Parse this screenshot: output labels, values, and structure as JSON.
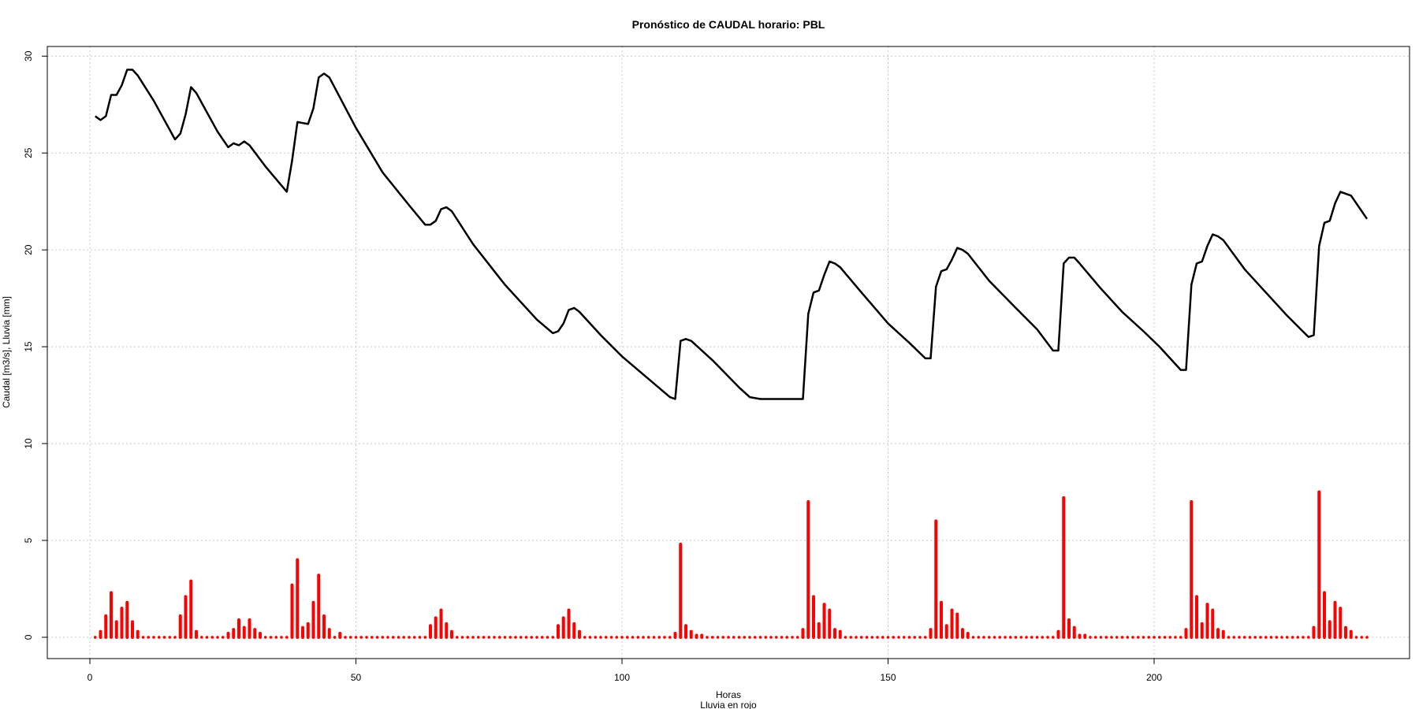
{
  "chart_data": {
    "type": "line",
    "title": "Pronóstico de CAUDAL horario: PBL",
    "xlabel": "Horas",
    "xlabel2": "Lluvia en rojo",
    "ylabel": "Caudal [m3/s], Lluvia [mm]",
    "xlim": [
      -8,
      248
    ],
    "ylim": [
      -1.1,
      30.5
    ],
    "xticks": [
      0,
      50,
      100,
      150,
      200
    ],
    "yticks": [
      0,
      5,
      10,
      15,
      20,
      25,
      30
    ],
    "grid": true,
    "colors": {
      "caudal": "#000000",
      "lluvia": "#ff0000",
      "grid": "#c8c8c8"
    },
    "caudal_points": [
      [
        1,
        26.9
      ],
      [
        2,
        26.7
      ],
      [
        3,
        26.9
      ],
      [
        4,
        28.0
      ],
      [
        5,
        28.0
      ],
      [
        6,
        28.5
      ],
      [
        7,
        29.3
      ],
      [
        8,
        29.3
      ],
      [
        9,
        29.0
      ],
      [
        12,
        27.7
      ],
      [
        16,
        25.7
      ],
      [
        17,
        26.0
      ],
      [
        18,
        27.0
      ],
      [
        19,
        28.4
      ],
      [
        20,
        28.1
      ],
      [
        24,
        26.1
      ],
      [
        26,
        25.3
      ],
      [
        27,
        25.5
      ],
      [
        28,
        25.4
      ],
      [
        29,
        25.6
      ],
      [
        30,
        25.4
      ],
      [
        33,
        24.3
      ],
      [
        37,
        23.0
      ],
      [
        38,
        24.6
      ],
      [
        39,
        26.6
      ],
      [
        41,
        26.5
      ],
      [
        42,
        27.3
      ],
      [
        43,
        28.9
      ],
      [
        44,
        29.1
      ],
      [
        45,
        28.9
      ],
      [
        50,
        26.3
      ],
      [
        55,
        24.0
      ],
      [
        60,
        22.3
      ],
      [
        63,
        21.3
      ],
      [
        64,
        21.3
      ],
      [
        65,
        21.5
      ],
      [
        66,
        22.1
      ],
      [
        67,
        22.2
      ],
      [
        68,
        22.0
      ],
      [
        72,
        20.3
      ],
      [
        78,
        18.2
      ],
      [
        84,
        16.4
      ],
      [
        87,
        15.7
      ],
      [
        88,
        15.8
      ],
      [
        89,
        16.2
      ],
      [
        90,
        16.9
      ],
      [
        91,
        17.0
      ],
      [
        92,
        16.8
      ],
      [
        96,
        15.6
      ],
      [
        100,
        14.5
      ],
      [
        106,
        13.1
      ],
      [
        109,
        12.4
      ],
      [
        110,
        12.3
      ],
      [
        111,
        15.3
      ],
      [
        112,
        15.4
      ],
      [
        113,
        15.3
      ],
      [
        117,
        14.3
      ],
      [
        122,
        12.9
      ],
      [
        124,
        12.4
      ],
      [
        126,
        12.3
      ],
      [
        134,
        12.3
      ],
      [
        135,
        16.7
      ],
      [
        136,
        17.8
      ],
      [
        137,
        17.9
      ],
      [
        138,
        18.7
      ],
      [
        139,
        19.4
      ],
      [
        140,
        19.3
      ],
      [
        141,
        19.1
      ],
      [
        145,
        17.8
      ],
      [
        150,
        16.2
      ],
      [
        154,
        15.2
      ],
      [
        157,
        14.4
      ],
      [
        158,
        14.4
      ],
      [
        159,
        18.1
      ],
      [
        160,
        18.9
      ],
      [
        161,
        19.0
      ],
      [
        162,
        19.5
      ],
      [
        163,
        20.1
      ],
      [
        164,
        20.0
      ],
      [
        165,
        19.8
      ],
      [
        169,
        18.4
      ],
      [
        174,
        17.0
      ],
      [
        178,
        15.9
      ],
      [
        181,
        14.8
      ],
      [
        182,
        14.8
      ],
      [
        183,
        19.3
      ],
      [
        184,
        19.6
      ],
      [
        185,
        19.6
      ],
      [
        186,
        19.3
      ],
      [
        190,
        18.0
      ],
      [
        194,
        16.8
      ],
      [
        198,
        15.8
      ],
      [
        201,
        15.0
      ],
      [
        205,
        13.8
      ],
      [
        206,
        13.8
      ],
      [
        207,
        18.2
      ],
      [
        208,
        19.3
      ],
      [
        209,
        19.4
      ],
      [
        210,
        20.2
      ],
      [
        211,
        20.8
      ],
      [
        212,
        20.7
      ],
      [
        213,
        20.5
      ],
      [
        217,
        19.0
      ],
      [
        221,
        17.8
      ],
      [
        225,
        16.6
      ],
      [
        229,
        15.5
      ],
      [
        230,
        15.6
      ],
      [
        231,
        20.2
      ],
      [
        232,
        21.4
      ],
      [
        233,
        21.5
      ],
      [
        234,
        22.4
      ],
      [
        235,
        23.0
      ],
      [
        236,
        22.9
      ],
      [
        237,
        22.8
      ],
      [
        240,
        21.6
      ]
    ],
    "lluvia_points": [
      [
        2,
        0.3
      ],
      [
        3,
        1.1
      ],
      [
        4,
        2.3
      ],
      [
        5,
        0.8
      ],
      [
        6,
        1.5
      ],
      [
        7,
        1.8
      ],
      [
        8,
        0.8
      ],
      [
        9,
        0.3
      ],
      [
        17,
        1.1
      ],
      [
        18,
        2.1
      ],
      [
        19,
        2.9
      ],
      [
        20,
        0.3
      ],
      [
        26,
        0.2
      ],
      [
        27,
        0.4
      ],
      [
        28,
        0.9
      ],
      [
        29,
        0.5
      ],
      [
        30,
        0.9
      ],
      [
        31,
        0.4
      ],
      [
        32,
        0.2
      ],
      [
        38,
        2.7
      ],
      [
        39,
        4.0
      ],
      [
        40,
        0.5
      ],
      [
        41,
        0.7
      ],
      [
        42,
        1.8
      ],
      [
        43,
        3.2
      ],
      [
        44,
        1.1
      ],
      [
        45,
        0.4
      ],
      [
        47,
        0.2
      ],
      [
        64,
        0.6
      ],
      [
        65,
        1.0
      ],
      [
        66,
        1.4
      ],
      [
        67,
        0.7
      ],
      [
        68,
        0.3
      ],
      [
        88,
        0.6
      ],
      [
        89,
        1.0
      ],
      [
        90,
        1.4
      ],
      [
        91,
        0.7
      ],
      [
        92,
        0.3
      ],
      [
        110,
        0.2
      ],
      [
        111,
        4.8
      ],
      [
        112,
        0.6
      ],
      [
        113,
        0.3
      ],
      [
        114,
        0.1
      ],
      [
        115,
        0.1
      ],
      [
        134,
        0.4
      ],
      [
        135,
        7.0
      ],
      [
        136,
        2.1
      ],
      [
        137,
        0.7
      ],
      [
        138,
        1.7
      ],
      [
        139,
        1.4
      ],
      [
        140,
        0.4
      ],
      [
        141,
        0.3
      ],
      [
        158,
        0.4
      ],
      [
        159,
        6.0
      ],
      [
        160,
        1.8
      ],
      [
        161,
        0.6
      ],
      [
        162,
        1.4
      ],
      [
        163,
        1.2
      ],
      [
        164,
        0.4
      ],
      [
        165,
        0.2
      ],
      [
        182,
        0.3
      ],
      [
        183,
        7.2
      ],
      [
        184,
        0.9
      ],
      [
        185,
        0.5
      ],
      [
        186,
        0.1
      ],
      [
        187,
        0.1
      ],
      [
        206,
        0.4
      ],
      [
        207,
        7.0
      ],
      [
        208,
        2.1
      ],
      [
        209,
        0.7
      ],
      [
        210,
        1.7
      ],
      [
        211,
        1.4
      ],
      [
        212,
        0.4
      ],
      [
        213,
        0.3
      ],
      [
        230,
        0.5
      ],
      [
        231,
        7.5
      ],
      [
        232,
        2.3
      ],
      [
        233,
        0.8
      ],
      [
        234,
        1.8
      ],
      [
        235,
        1.5
      ],
      [
        236,
        0.5
      ],
      [
        237,
        0.3
      ]
    ],
    "rain_x_range": [
      1,
      240
    ]
  }
}
